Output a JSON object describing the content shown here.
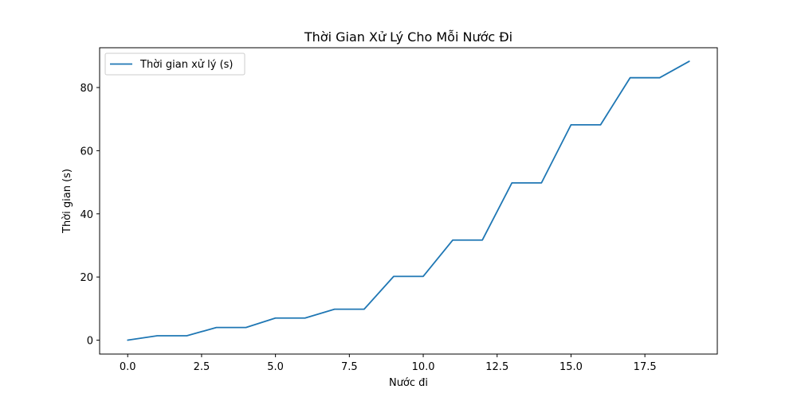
{
  "chart_data": {
    "type": "line",
    "title": "Thời Gian Xử Lý Cho Mỗi Nước Đi",
    "xlabel": "Nước đi",
    "ylabel": "Thời gian (s)",
    "xlim": [
      -0.95,
      19.95
    ],
    "ylim": [
      -4.4,
      92.6
    ],
    "xticks": [
      0.0,
      2.5,
      5.0,
      7.5,
      10.0,
      12.5,
      15.0,
      17.5
    ],
    "xtick_labels": [
      "0.0",
      "2.5",
      "5.0",
      "7.5",
      "10.0",
      "12.5",
      "15.0",
      "17.5"
    ],
    "yticks": [
      0,
      20,
      40,
      60,
      80
    ],
    "ytick_labels": [
      "0",
      "20",
      "40",
      "60",
      "80"
    ],
    "grid": false,
    "legend_position": "top-left",
    "series": [
      {
        "name": "Thời gian xử lý (s)",
        "color": "#1f77b4",
        "x": [
          0,
          1,
          2,
          3,
          4,
          5,
          6,
          7,
          8,
          9,
          10,
          11,
          12,
          13,
          14,
          15,
          16,
          17,
          18,
          19
        ],
        "values": [
          0.0,
          1.4,
          1.4,
          4.0,
          4.0,
          7.0,
          7.0,
          9.8,
          9.8,
          20.2,
          20.2,
          31.7,
          31.7,
          49.8,
          49.8,
          68.2,
          68.2,
          83.1,
          83.1,
          88.3
        ]
      }
    ]
  }
}
